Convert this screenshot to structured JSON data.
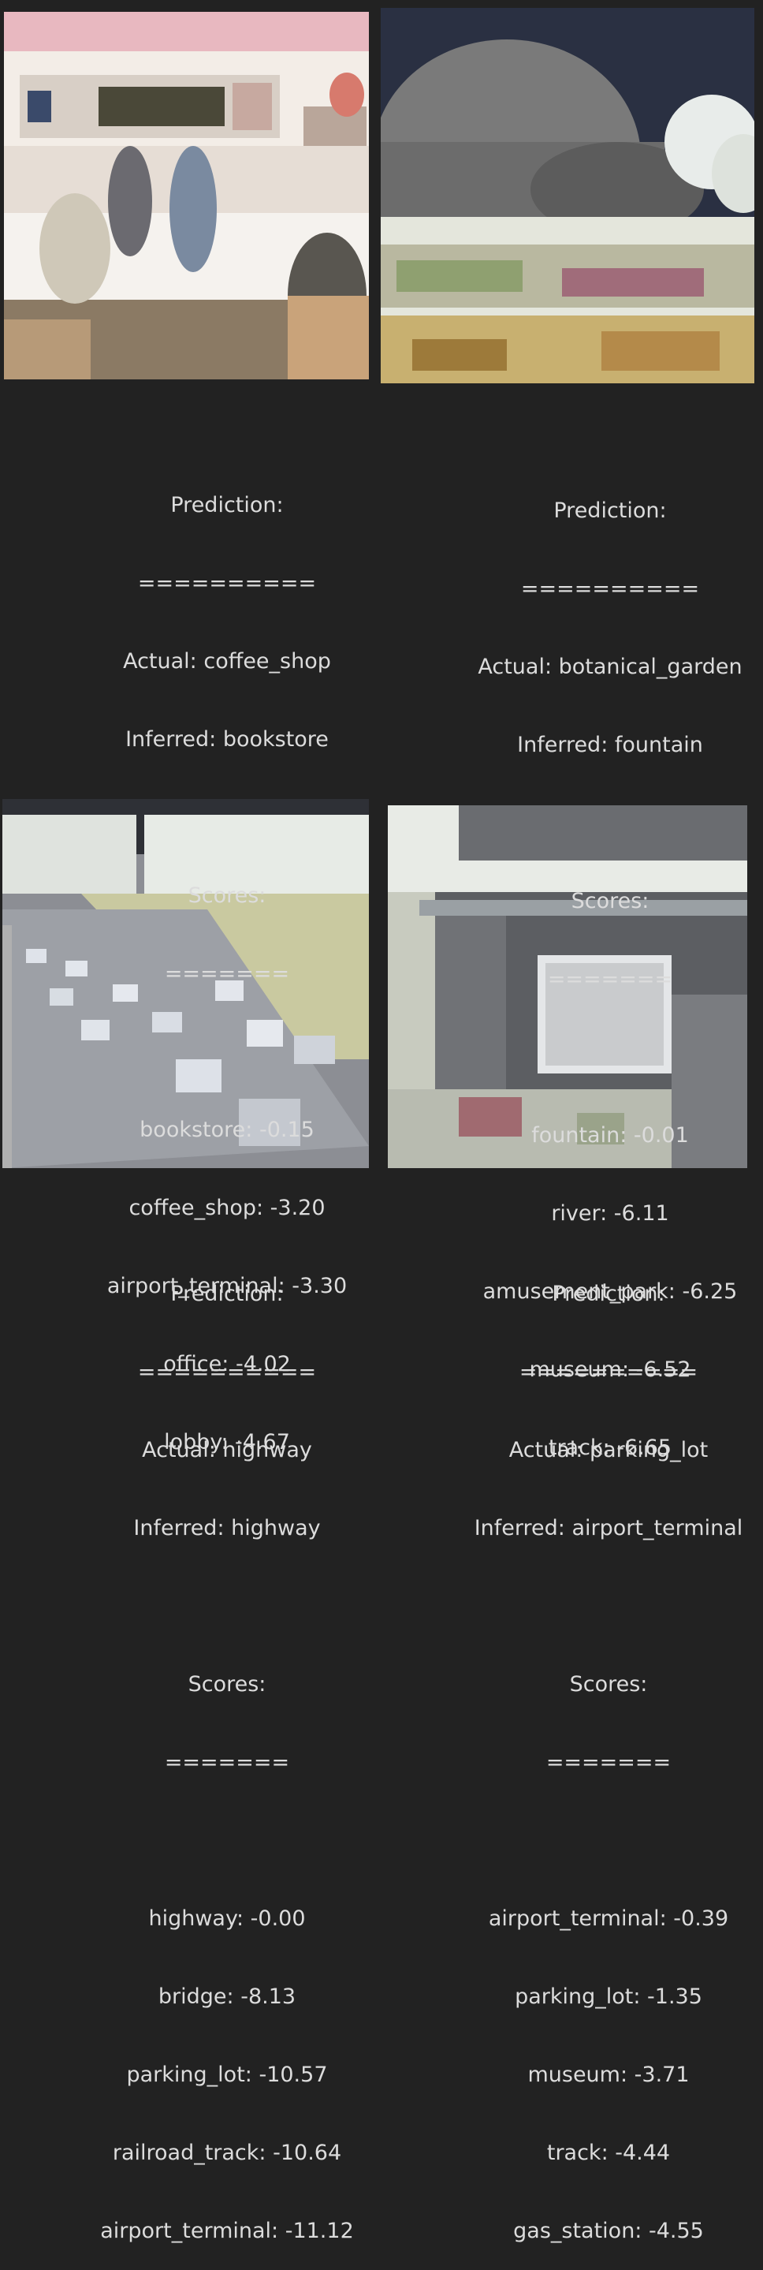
{
  "panels": [
    {
      "image_label": "coffee shop interior photo (inverted colors)",
      "heading": "Prediction:",
      "rule": "==========",
      "actual": "Actual: coffee_shop",
      "inferred": "Inferred: bookstore",
      "scores_heading": "Scores:",
      "scores_rule": "=======",
      "scores": [
        "bookstore: -0.15",
        "coffee_shop: -3.20",
        "airport_terminal: -3.30",
        "office: -4.02",
        "lobby: -4.67"
      ]
    },
    {
      "image_label": "glasshouse and flower garden photo (inverted colors)",
      "heading": "Prediction:",
      "rule": "==========",
      "actual": "Actual: botanical_garden",
      "inferred": "Inferred: fountain",
      "scores_heading": "Scores:",
      "scores_rule": "=======",
      "scores": [
        "fountain: -0.01",
        "river: -6.11",
        "amusement_park: -6.25",
        "museum: -6.52",
        "track: -6.65"
      ]
    },
    {
      "image_label": "highway traffic photo (inverted colors)",
      "heading": "Prediction:",
      "rule": "==========",
      "actual": "Actual: highway",
      "inferred": "Inferred: highway",
      "scores_heading": "Scores:",
      "scores_rule": "=======",
      "scores": [
        "highway: -0.00",
        "bridge: -8.13",
        "parking_lot: -10.57",
        "railroad_track: -10.64",
        "airport_terminal: -11.12"
      ]
    },
    {
      "image_label": "aerial parking lot photo (inverted colors)",
      "heading": "Prediction:",
      "rule": "==========",
      "actual": "Actual: parking_lot",
      "inferred": "Inferred: airport_terminal",
      "scores_heading": "Scores:",
      "scores_rule": "=======",
      "scores": [
        "airport_terminal: -0.39",
        "parking_lot: -1.35",
        "museum: -3.71",
        "track: -4.44",
        "gas_station: -4.55"
      ]
    }
  ]
}
